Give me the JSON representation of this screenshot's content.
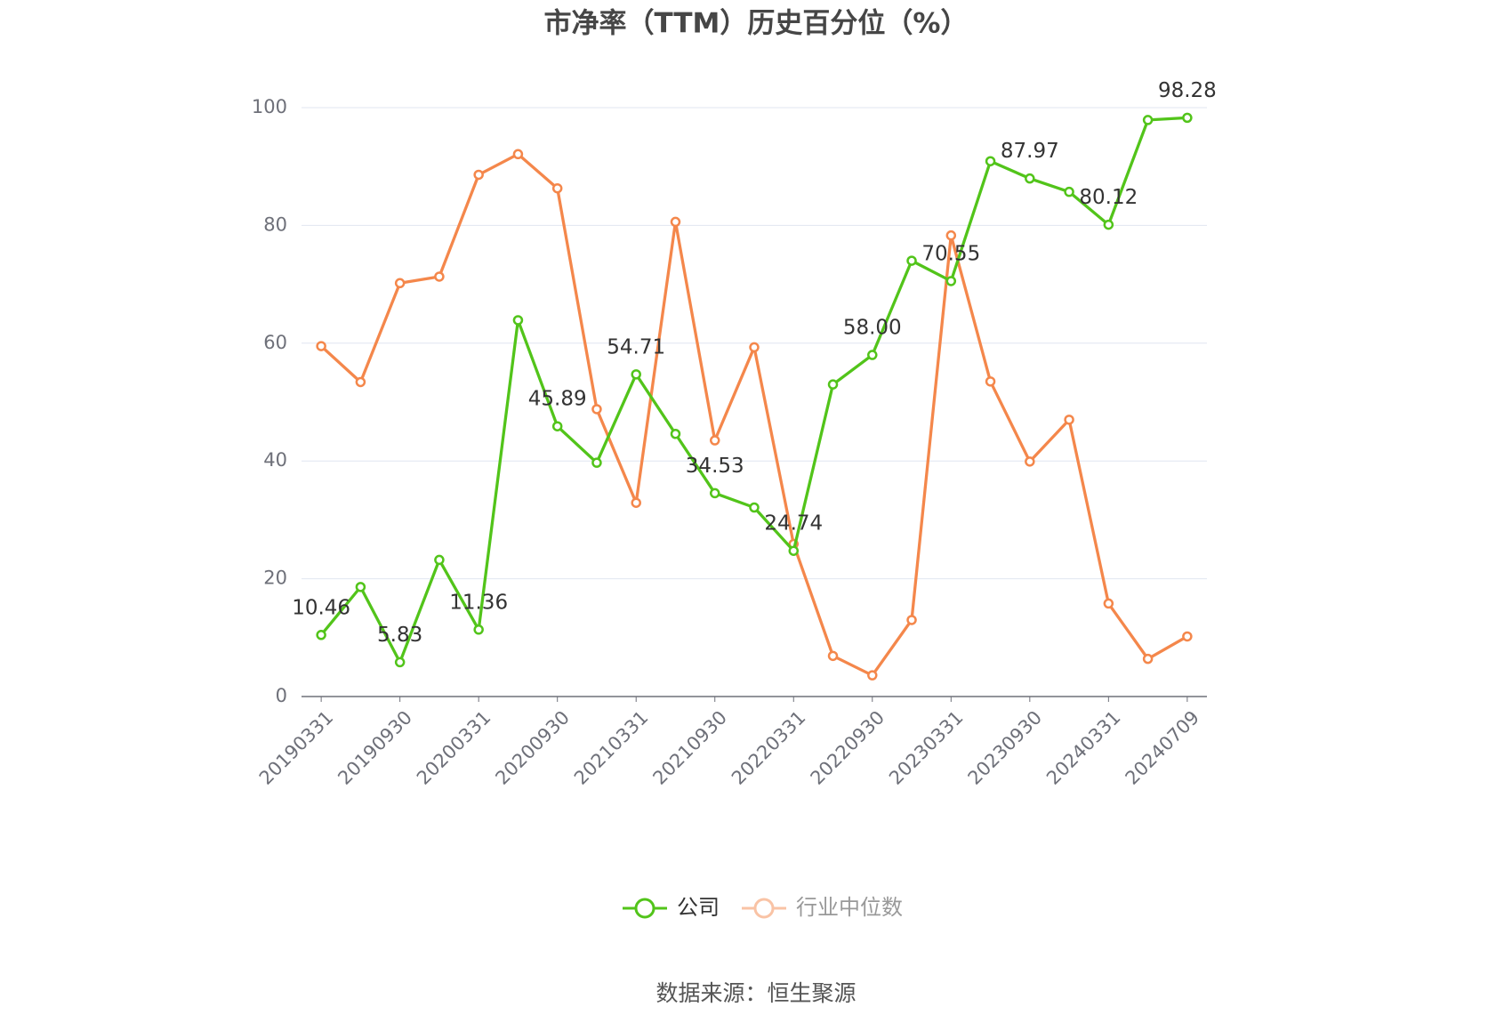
{
  "chart_data": {
    "type": "line",
    "title": "市净率（TTM）历史百分位（%）",
    "source": "数据来源：恒生聚源",
    "categories": [
      "20190331",
      null,
      "20190930",
      null,
      "20200331",
      null,
      "20200930",
      null,
      "20210331",
      null,
      "20210930",
      null,
      "20220331",
      null,
      "20220930",
      null,
      "20230331",
      null,
      "20230930",
      null,
      "20240331",
      null,
      "20240709"
    ],
    "series": [
      {
        "name": "公司",
        "color": "#52c41a",
        "values": [
          10.46,
          18.6,
          5.83,
          23.2,
          11.36,
          63.9,
          45.89,
          39.7,
          54.71,
          44.6,
          34.53,
          32.1,
          24.74,
          53.0,
          58.0,
          74.0,
          70.55,
          90.9,
          87.97,
          85.7,
          80.12,
          97.9,
          98.28
        ],
        "value_labels": [
          "10.46",
          null,
          "5.83",
          null,
          "11.36",
          null,
          "45.89",
          null,
          "54.71",
          null,
          "34.53",
          null,
          "24.74",
          null,
          "58.00",
          null,
          "70.55",
          null,
          "87.97",
          null,
          "80.12",
          null,
          "98.28"
        ]
      },
      {
        "name": "行业中位数",
        "color": "#f4874b",
        "values": [
          59.5,
          53.4,
          70.2,
          71.3,
          88.6,
          92.1,
          86.3,
          48.8,
          32.9,
          80.6,
          43.5,
          59.3,
          25.9,
          6.9,
          3.6,
          13.0,
          78.3,
          53.5,
          39.9,
          47.0,
          15.8,
          6.4,
          10.2
        ]
      }
    ],
    "ylim": [
      0,
      100
    ],
    "yticks": [
      0,
      20,
      40,
      60,
      80,
      100
    ],
    "grid": true
  }
}
